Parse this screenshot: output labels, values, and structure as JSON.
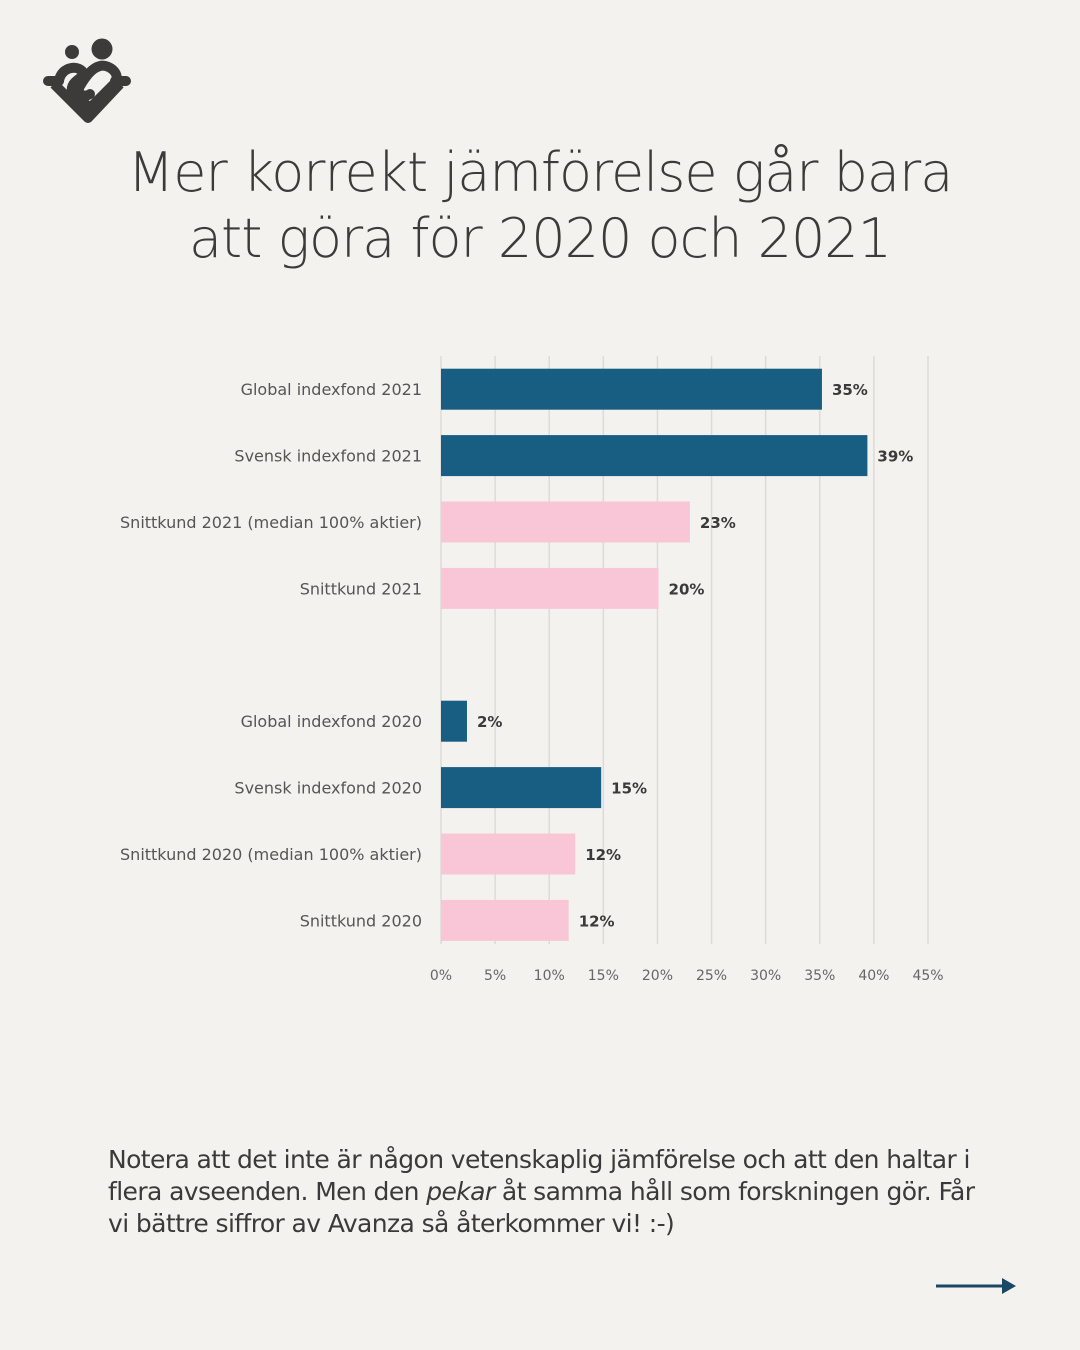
{
  "brand": {
    "logo_icon": "people-heart-logo-icon"
  },
  "title": {
    "line1": "Mer korrekt jämförelse går bara",
    "line2": "att göra för 2020 och 2021"
  },
  "chart_data": {
    "type": "bar",
    "orientation": "horizontal",
    "title": "",
    "xlabel": "",
    "ylabel": "",
    "xlim": [
      0,
      45
    ],
    "x_ticks": [
      "0%",
      "5%",
      "10%",
      "15%",
      "20%",
      "25%",
      "30%",
      "35%",
      "40%",
      "45%"
    ],
    "x_tick_values": [
      0,
      5,
      10,
      15,
      20,
      25,
      30,
      35,
      40,
      45
    ],
    "grid": true,
    "legend": "none",
    "colors": {
      "index_fund": "#175e82",
      "customer": "#f8c6d7"
    },
    "categories": [
      "Global indexfond 2021",
      "Svensk indexfond 2021",
      "Snittkund 2021 (median 100% aktier)",
      "Snittkund 2021",
      "",
      "Global indexfond 2020",
      "Svensk indexfond 2020",
      "Snittkund 2020 (median 100% aktier)",
      "Snittkund 2020"
    ],
    "values": [
      35.2,
      39.4,
      23.0,
      20.1,
      null,
      2.4,
      14.8,
      12.4,
      11.8
    ],
    "value_labels": [
      "35%",
      "39%",
      "23%",
      "20%",
      "",
      "2%",
      "15%",
      "12%",
      "12%"
    ],
    "groups": [
      "index_fund",
      "index_fund",
      "customer",
      "customer",
      null,
      "index_fund",
      "index_fund",
      "customer",
      "customer"
    ]
  },
  "note": {
    "part1": "Notera att det inte är någon vetenskaplig jämförelse och att den haltar i flera avseenden. Men den ",
    "emphasis": "pekar",
    "part2": " åt samma håll som forskningen gör. Får vi bättre siffror av Avanza så återkommer vi! :-)"
  },
  "navigation": {
    "next_icon": "arrow-right-icon",
    "color": "#1a4766"
  }
}
